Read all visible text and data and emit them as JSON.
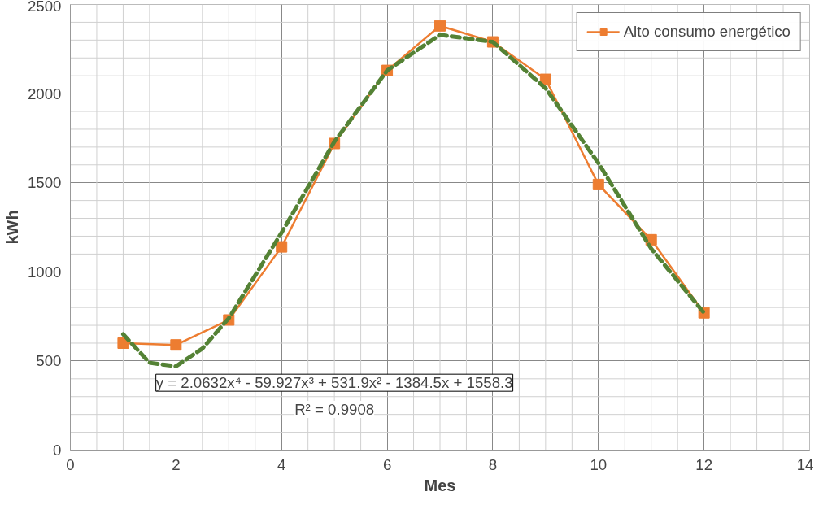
{
  "chart_data": {
    "type": "line",
    "xlabel": "Mes",
    "ylabel": "kWh",
    "x": [
      1,
      2,
      3,
      4,
      5,
      6,
      7,
      8,
      9,
      10,
      11,
      12
    ],
    "series": [
      {
        "name": "Alto consumo energético",
        "color": "#ed7d31",
        "marker": "square",
        "line_style": "solid",
        "values": [
          600,
          590,
          730,
          1140,
          1720,
          2130,
          2380,
          2290,
          2080,
          1490,
          1180,
          770
        ]
      },
      {
        "type": "line",
        "color": "#548235",
        "marker": "none",
        "line_style": "dashed",
        "x": [
          1,
          1.5,
          2,
          2.5,
          3,
          4,
          5,
          6,
          7,
          8,
          9,
          10,
          11,
          12
        ],
        "values": [
          650,
          490,
          470,
          570,
          740,
          1220,
          1730,
          2130,
          2330,
          2290,
          2030,
          1610,
          1130,
          770
        ]
      }
    ],
    "xlim": [
      0,
      14
    ],
    "xticks": [
      0,
      2,
      4,
      6,
      8,
      10,
      12,
      14
    ],
    "ylim": [
      0,
      2500
    ],
    "yticks": [
      0,
      500,
      1000,
      1500,
      2000,
      2500
    ],
    "grid": true,
    "legend": "top right",
    "annotations": [
      "y = 2.0632x⁴ - 59.927x³ + 531.9x² - 1384.5x + 1558.3",
      "R² = 0.9908"
    ]
  }
}
